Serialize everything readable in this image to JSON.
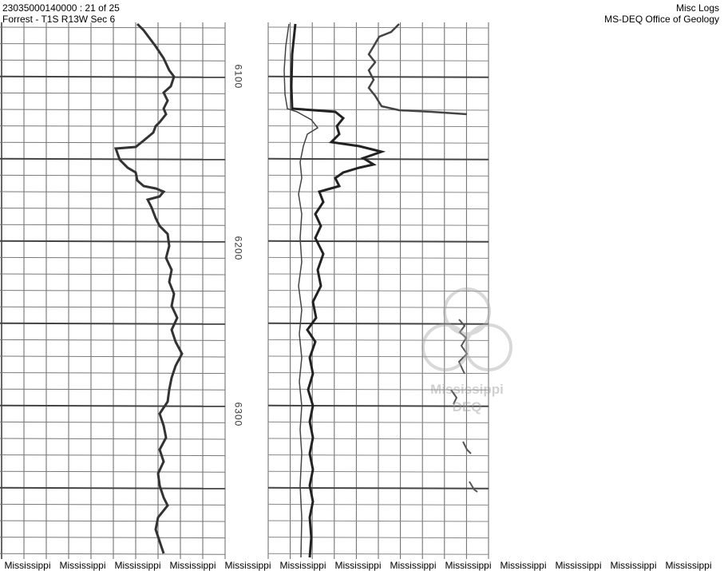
{
  "header": {
    "document_id": "23035000140000 : 21 of 25",
    "location": "Forrest - T1S R13W Sec 6",
    "category": "Misc Logs",
    "agency": "MS-DEQ Office of Geology"
  },
  "log": {
    "depth_labels": [
      "6100",
      "6200",
      "6300"
    ]
  },
  "watermark": {
    "line1": "Mississippi",
    "line2": "DEQ"
  },
  "footer": {
    "repeated_text": [
      "Mississippi",
      "Mississippi",
      "Mississippi",
      "Mississippi",
      "Mississippi",
      "Mississippi",
      "Mississippi",
      "Mississippi",
      "Mississippi",
      "Mississippi",
      "Mississippi",
      "Mississippi",
      "Mississippi"
    ]
  }
}
